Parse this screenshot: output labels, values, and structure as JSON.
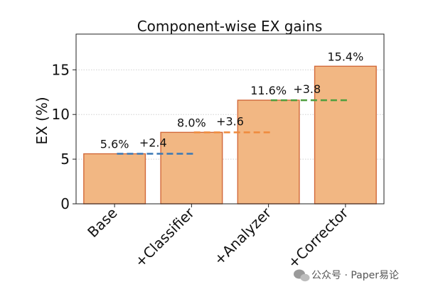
{
  "chart_data": {
    "type": "bar",
    "title": "Component-wise EX gains",
    "xlabel": "",
    "ylabel": "EX (%)",
    "categories": [
      "Base",
      "+Classifier",
      "+Analyzer",
      "+Corrector"
    ],
    "values": [
      5.6,
      8.0,
      11.6,
      15.4
    ],
    "value_labels": [
      "5.6%",
      "8.0%",
      "11.6%",
      "15.4%"
    ],
    "gains": [
      {
        "label": "+2.4",
        "level": 5.6,
        "color": "#3a78b5"
      },
      {
        "label": "+3.6",
        "level": 8.0,
        "color": "#ef8a3c"
      },
      {
        "label": "+3.8",
        "level": 11.6,
        "color": "#4e9e3e"
      }
    ],
    "ylim": [
      0,
      19
    ],
    "yticks": [
      "0",
      "5",
      "10",
      "15"
    ],
    "grid": "y",
    "bar_color": "#f2b783",
    "bar_edge_color": "#d2693a"
  },
  "watermark": "公众号 · Paper易论"
}
